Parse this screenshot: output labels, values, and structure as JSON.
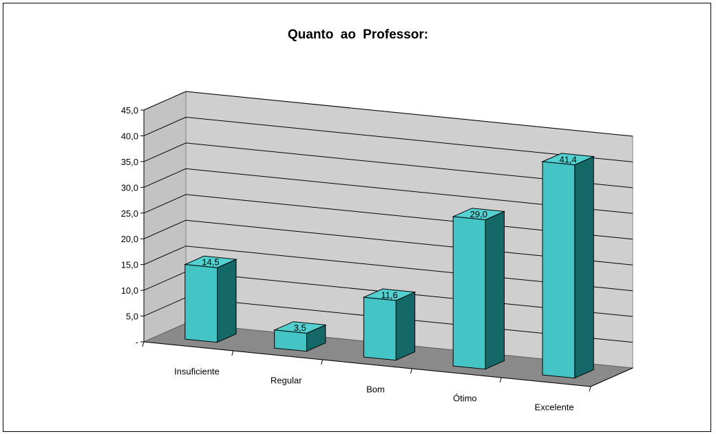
{
  "chart_data": {
    "type": "bar",
    "title": "Quanto ao Professor:",
    "categories": [
      "Insuficiente",
      "Regular",
      "Bom",
      "Ótimo",
      "Excelente"
    ],
    "values": [
      14.5,
      3.5,
      11.6,
      29.0,
      41.4
    ],
    "data_labels": [
      "14,5",
      "3,5",
      "11,6",
      "29,0",
      "41,4"
    ],
    "y_tick_labels": [
      "-",
      "5,0",
      "10,0",
      "15,0",
      "20,0",
      "25,0",
      "30,0",
      "35,0",
      "40,0",
      "45,0"
    ],
    "ylim": [
      0,
      45
    ],
    "xlabel": "",
    "ylabel": "",
    "grid": true,
    "legend": "none",
    "style": "3d-column",
    "colors": {
      "bar_front": "#45c4c6",
      "bar_top": "#55d0d0",
      "bar_side": "#156868",
      "back_wall": "#cfcfcf",
      "side_wall": "#c3c3c3",
      "floor": "#8a8a8a"
    }
  }
}
